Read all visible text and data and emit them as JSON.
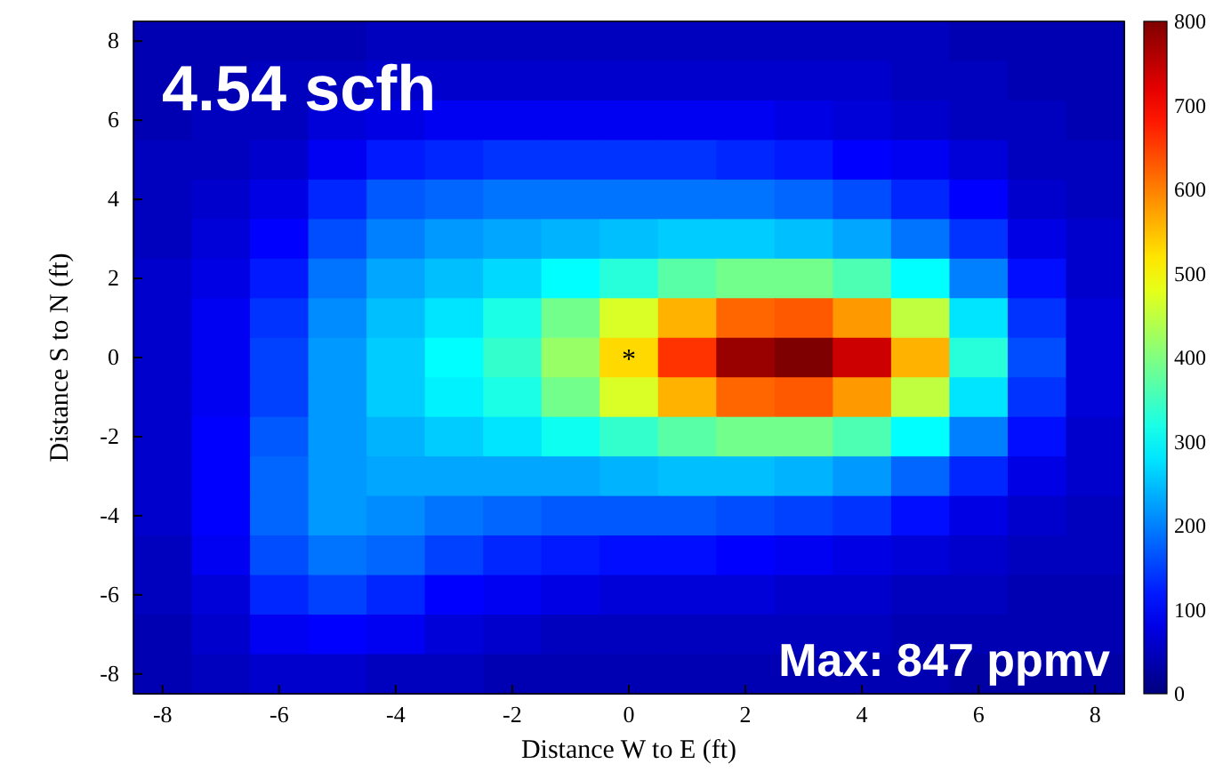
{
  "chart_data": {
    "type": "heatmap",
    "xlabel": "Distance W to E (ft)",
    "ylabel": "Distance S to N (ft)",
    "categories": [
      "-8",
      null,
      "-6",
      null,
      "-4",
      null,
      "-2",
      null,
      "0",
      null,
      "2",
      null,
      "4",
      null,
      "6",
      null,
      "8"
    ],
    "y_categories": [
      "8",
      null,
      "6",
      null,
      "4",
      null,
      "2",
      null,
      "0",
      null,
      "-2",
      null,
      "-4",
      null,
      "-6",
      null,
      "-8"
    ],
    "clim": [
      0,
      800
    ],
    "cticks": [
      0,
      100,
      200,
      300,
      400,
      500,
      600,
      700,
      800
    ],
    "cells": [
      [
        40,
        40,
        40,
        40,
        50,
        50,
        50,
        50,
        50,
        50,
        50,
        50,
        50,
        50,
        40,
        40,
        40
      ],
      [
        40,
        40,
        50,
        50,
        60,
        60,
        60,
        60,
        60,
        60,
        60,
        60,
        60,
        50,
        50,
        40,
        40
      ],
      [
        40,
        50,
        50,
        70,
        80,
        90,
        90,
        90,
        90,
        90,
        90,
        80,
        70,
        60,
        50,
        50,
        40
      ],
      [
        50,
        50,
        60,
        90,
        120,
        130,
        140,
        140,
        140,
        140,
        130,
        120,
        100,
        90,
        70,
        50,
        50
      ],
      [
        50,
        60,
        80,
        130,
        170,
        180,
        190,
        190,
        190,
        190,
        190,
        180,
        160,
        130,
        100,
        60,
        50
      ],
      [
        50,
        70,
        100,
        160,
        200,
        220,
        230,
        240,
        250,
        260,
        260,
        250,
        230,
        190,
        140,
        80,
        60
      ],
      [
        60,
        80,
        120,
        190,
        230,
        250,
        270,
        300,
        330,
        370,
        390,
        390,
        360,
        300,
        200,
        110,
        60
      ],
      [
        60,
        90,
        140,
        210,
        250,
        280,
        320,
        390,
        470,
        560,
        620,
        630,
        580,
        450,
        280,
        140,
        70
      ],
      [
        60,
        90,
        150,
        220,
        260,
        300,
        340,
        420,
        530,
        660,
        780,
        820,
        740,
        560,
        330,
        160,
        70
      ],
      [
        60,
        90,
        150,
        220,
        260,
        290,
        320,
        390,
        470,
        560,
        620,
        630,
        580,
        450,
        280,
        140,
        70
      ],
      [
        60,
        100,
        170,
        220,
        240,
        260,
        280,
        310,
        340,
        370,
        390,
        390,
        360,
        300,
        200,
        110,
        60
      ],
      [
        60,
        100,
        180,
        220,
        230,
        230,
        230,
        230,
        240,
        250,
        250,
        240,
        220,
        180,
        130,
        80,
        60
      ],
      [
        60,
        100,
        180,
        220,
        210,
        190,
        180,
        170,
        170,
        170,
        160,
        150,
        140,
        110,
        80,
        60,
        50
      ],
      [
        50,
        90,
        160,
        190,
        180,
        150,
        130,
        120,
        110,
        110,
        100,
        90,
        80,
        70,
        60,
        50,
        50
      ],
      [
        50,
        70,
        130,
        150,
        130,
        100,
        90,
        80,
        70,
        70,
        70,
        60,
        60,
        50,
        50,
        40,
        40
      ],
      [
        40,
        60,
        90,
        100,
        90,
        70,
        60,
        50,
        50,
        50,
        50,
        50,
        50,
        40,
        40,
        40,
        40
      ],
      [
        40,
        50,
        60,
        60,
        50,
        50,
        40,
        40,
        40,
        40,
        40,
        40,
        40,
        40,
        30,
        30,
        30
      ]
    ],
    "annotations": [
      "4.54 scfh",
      "Max: 847 ppmv",
      "*"
    ]
  }
}
